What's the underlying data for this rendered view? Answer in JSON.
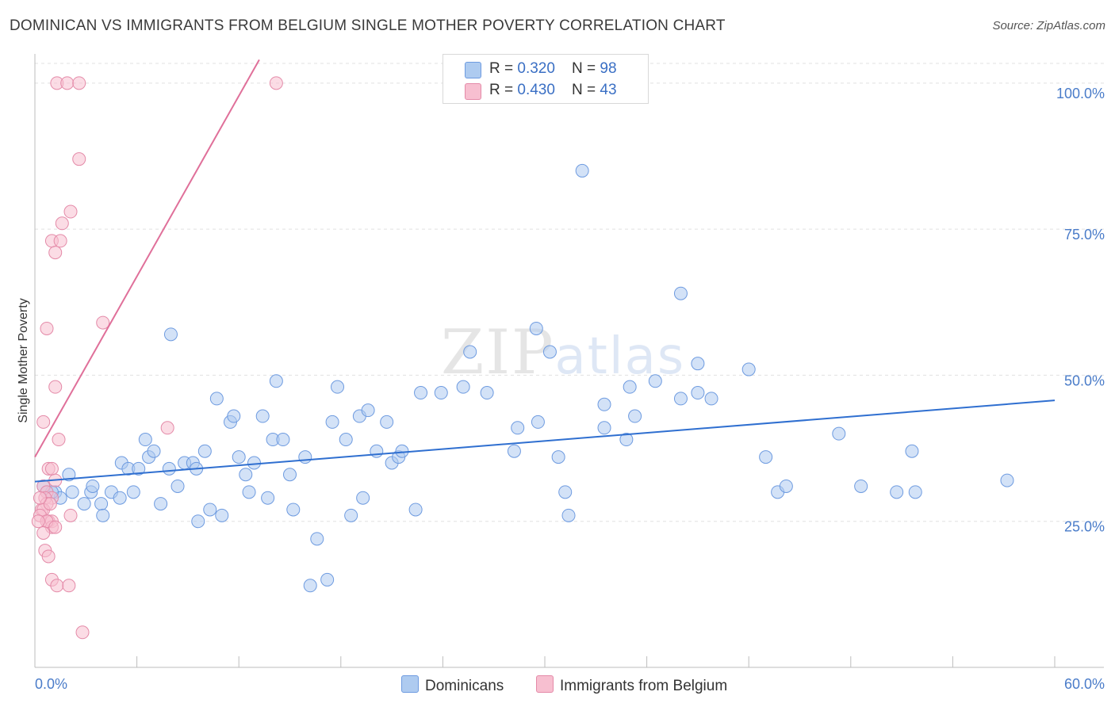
{
  "title": "DOMINICAN VS IMMIGRANTS FROM BELGIUM SINGLE MOTHER POVERTY CORRELATION CHART",
  "source": "Source: ZipAtlas.com",
  "watermark": {
    "zip": "ZIP",
    "atlas": "atlas"
  },
  "legend": {
    "series1": {
      "r_label": "R = ",
      "r_value": "0.320",
      "n_label": "N = ",
      "n_value": "98"
    },
    "series2": {
      "r_label": "R = ",
      "r_value": "0.430",
      "n_label": "N = ",
      "n_value": "43"
    }
  },
  "bottom_legend": {
    "series1": "Dominicans",
    "series2": "Immigrants from Belgium"
  },
  "colors": {
    "blue_fill": "#aecbf0",
    "blue_stroke": "#6e9be0",
    "blue_line": "#2f6fd0",
    "pink_fill": "#f7bfd0",
    "pink_stroke": "#e48aa8",
    "pink_line": "#e0709a",
    "tick_text": "#4a7cc9",
    "grid": "#e0e0e0"
  },
  "chart_data": {
    "type": "scatter",
    "title": "DOMINICAN VS IMMIGRANTS FROM BELGIUM SINGLE MOTHER POVERTY CORRELATION CHART",
    "xlabel": "",
    "ylabel": "Single Mother Poverty",
    "xlim": [
      0,
      60
    ],
    "ylim": [
      0,
      105
    ],
    "x_tick_labels": [
      "0.0%",
      "60.0%"
    ],
    "y_ticks": [
      25,
      50,
      75,
      100
    ],
    "y_tick_labels": [
      "25.0%",
      "50.0%",
      "75.0%",
      "100.0%"
    ],
    "series": [
      {
        "name": "Dominicans",
        "r": 0.32,
        "n": 98,
        "trend": {
          "x": [
            0,
            60
          ],
          "y": [
            31.8,
            45.7
          ]
        },
        "points": [
          [
            0.5,
            31
          ],
          [
            0.7,
            30
          ],
          [
            1.2,
            30
          ],
          [
            1.5,
            29
          ],
          [
            2.0,
            33
          ],
          [
            2.2,
            30
          ],
          [
            2.9,
            28
          ],
          [
            3.3,
            30
          ],
          [
            3.4,
            31
          ],
          [
            3.9,
            28
          ],
          [
            4.0,
            26
          ],
          [
            4.5,
            30
          ],
          [
            5.0,
            29
          ],
          [
            5.1,
            35
          ],
          [
            5.5,
            34
          ],
          [
            5.8,
            30
          ],
          [
            6.1,
            34
          ],
          [
            6.5,
            39
          ],
          [
            6.7,
            36
          ],
          [
            7.0,
            37
          ],
          [
            7.4,
            28
          ],
          [
            7.9,
            34
          ],
          [
            8.0,
            57
          ],
          [
            8.4,
            31
          ],
          [
            8.8,
            35
          ],
          [
            9.3,
            35
          ],
          [
            9.5,
            34
          ],
          [
            9.6,
            25
          ],
          [
            10.0,
            37
          ],
          [
            10.3,
            27
          ],
          [
            10.7,
            46
          ],
          [
            11.0,
            26
          ],
          [
            11.5,
            42
          ],
          [
            11.7,
            43
          ],
          [
            12.0,
            36
          ],
          [
            12.4,
            33
          ],
          [
            12.6,
            30
          ],
          [
            12.9,
            35
          ],
          [
            13.4,
            43
          ],
          [
            13.7,
            29
          ],
          [
            14.0,
            39
          ],
          [
            14.2,
            49
          ],
          [
            14.6,
            39
          ],
          [
            15.0,
            33
          ],
          [
            15.2,
            27
          ],
          [
            15.9,
            36
          ],
          [
            16.6,
            22
          ],
          [
            16.2,
            14
          ],
          [
            17.2,
            15
          ],
          [
            17.5,
            42
          ],
          [
            17.8,
            48
          ],
          [
            18.3,
            39
          ],
          [
            18.6,
            26
          ],
          [
            19.1,
            43
          ],
          [
            19.3,
            29
          ],
          [
            19.6,
            44
          ],
          [
            20.1,
            37
          ],
          [
            20.7,
            42
          ],
          [
            21.0,
            35
          ],
          [
            21.4,
            36
          ],
          [
            21.6,
            37
          ],
          [
            22.4,
            27
          ],
          [
            22.7,
            47
          ],
          [
            23.9,
            47
          ],
          [
            25.2,
            48
          ],
          [
            25.6,
            54
          ],
          [
            26.6,
            47
          ],
          [
            28.2,
            37
          ],
          [
            28.4,
            41
          ],
          [
            29.5,
            58
          ],
          [
            29.6,
            42
          ],
          [
            30.3,
            54
          ],
          [
            30.8,
            36
          ],
          [
            31.2,
            30
          ],
          [
            31.4,
            26
          ],
          [
            32.2,
            85
          ],
          [
            33.5,
            41
          ],
          [
            33.5,
            45
          ],
          [
            34.8,
            39
          ],
          [
            35.0,
            48
          ],
          [
            35.3,
            43
          ],
          [
            36.5,
            49
          ],
          [
            38.0,
            46
          ],
          [
            38.0,
            64
          ],
          [
            39.0,
            47
          ],
          [
            39.0,
            52
          ],
          [
            39.8,
            46
          ],
          [
            42.0,
            51
          ],
          [
            43.0,
            36
          ],
          [
            43.7,
            30
          ],
          [
            44.2,
            31
          ],
          [
            47.3,
            40
          ],
          [
            48.6,
            31
          ],
          [
            50.7,
            30
          ],
          [
            51.6,
            37
          ],
          [
            51.8,
            30
          ],
          [
            57.2,
            32
          ],
          [
            1.0,
            30
          ]
        ]
      },
      {
        "name": "Immigrants from Belgium",
        "r": 0.43,
        "n": 43,
        "trend": {
          "x": [
            0,
            13.2
          ],
          "y": [
            36,
            104
          ]
        },
        "points": [
          [
            1.3,
            100
          ],
          [
            1.9,
            100
          ],
          [
            2.6,
            100
          ],
          [
            14.2,
            100
          ],
          [
            2.6,
            87
          ],
          [
            2.1,
            78
          ],
          [
            1.6,
            76
          ],
          [
            1.0,
            73
          ],
          [
            1.5,
            73
          ],
          [
            1.2,
            71
          ],
          [
            4.0,
            59
          ],
          [
            0.7,
            58
          ],
          [
            1.2,
            48
          ],
          [
            7.8,
            41
          ],
          [
            0.5,
            42
          ],
          [
            1.4,
            39
          ],
          [
            0.8,
            34
          ],
          [
            1.0,
            34
          ],
          [
            0.5,
            31
          ],
          [
            0.7,
            30
          ],
          [
            1.2,
            32
          ],
          [
            1.0,
            29
          ],
          [
            0.6,
            29
          ],
          [
            0.7,
            28
          ],
          [
            0.4,
            27
          ],
          [
            0.5,
            27
          ],
          [
            0.3,
            26
          ],
          [
            0.8,
            25
          ],
          [
            1.0,
            25
          ],
          [
            1.0,
            24
          ],
          [
            0.7,
            25
          ],
          [
            1.2,
            24
          ],
          [
            2.1,
            26
          ],
          [
            0.2,
            25
          ],
          [
            0.5,
            23
          ],
          [
            0.6,
            20
          ],
          [
            0.8,
            19
          ],
          [
            1.0,
            15
          ],
          [
            1.3,
            14
          ],
          [
            2.0,
            14
          ],
          [
            2.8,
            6
          ],
          [
            0.9,
            28
          ],
          [
            0.3,
            29
          ]
        ]
      }
    ]
  }
}
